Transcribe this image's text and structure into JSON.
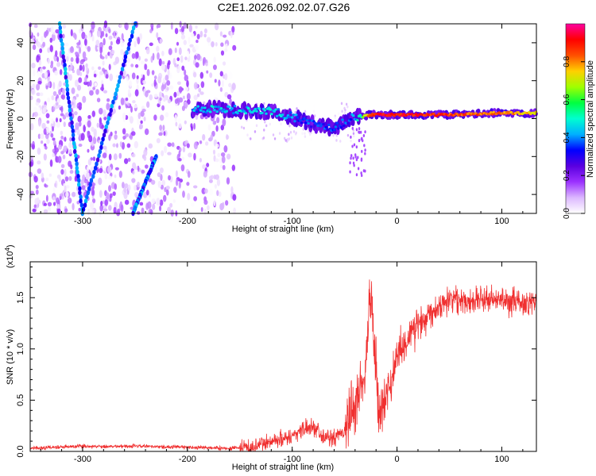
{
  "title": "C2E1.2026.092.02.07.G26",
  "colors": {
    "snr_line": "#f03030",
    "cbar_stops": [
      "#ffffff",
      "#dcb8ff",
      "#9b30ff",
      "#5a00e0",
      "#0000ff",
      "#00b0ff",
      "#00ffd0",
      "#00ff40",
      "#a0ff00",
      "#ffd000",
      "#ff5000",
      "#ff0000",
      "#ff00a0"
    ]
  },
  "chart_data": [
    {
      "id": "spectrogram",
      "type": "heatmap",
      "xlabel": "Height of straight line (km)",
      "ylabel": "Frequency (Hz)",
      "xlim": [
        -350,
        133
      ],
      "ylim": [
        -50,
        50
      ],
      "xticks": [
        -300,
        -200,
        -100,
        0,
        100
      ],
      "xtick_labels": [
        "-300",
        "-200",
        "-100",
        "0",
        "100"
      ],
      "yticks": [
        -40,
        -20,
        0,
        20,
        40
      ],
      "ytick_labels": [
        "-40",
        "-20",
        "0",
        "20",
        "40"
      ],
      "colorbar": {
        "label": "Normalized spectral amplitude",
        "range": [
          0,
          1
        ],
        "ticks": [
          0.0,
          0.2,
          0.4,
          0.6,
          0.8
        ],
        "tick_labels": [
          "0.0",
          "0.2",
          "0.4",
          "0.6",
          "0.8"
        ]
      },
      "noise_region_km": [
        -350,
        -155
      ],
      "main_signal_track": {
        "x": [
          -195,
          -180,
          -160,
          -140,
          -120,
          -100,
          -80,
          -60,
          -45,
          -35,
          -25,
          0,
          50,
          100,
          133
        ],
        "freq_hz": [
          5,
          5,
          5,
          4,
          4,
          1,
          -3,
          -5,
          0,
          1,
          2,
          2,
          2,
          3,
          3
        ],
        "amplitude": [
          0.4,
          0.45,
          0.45,
          0.45,
          0.45,
          0.4,
          0.35,
          0.35,
          0.35,
          0.5,
          0.9,
          0.9,
          0.85,
          0.8,
          0.75
        ]
      },
      "diagonal_tracks": [
        {
          "x_start": -322,
          "f_start": 50,
          "x_end": -300,
          "f_end": -50
        },
        {
          "x_start": -250,
          "f_start": 50,
          "x_end": -300,
          "f_end": -50
        },
        {
          "x_start": -230,
          "f_start": -20,
          "x_end": -252,
          "f_end": -50
        }
      ]
    },
    {
      "id": "snr",
      "type": "line",
      "xlabel": "Height of straight line (km)",
      "ylabel": "SNR (10 * v/v)",
      "scale_note": "(x10",
      "scale_exp": "4",
      "scale_close": ")",
      "xlim": [
        -350,
        133
      ],
      "ylim": [
        0,
        18500
      ],
      "xticks": [
        -300,
        -200,
        -100,
        0,
        100
      ],
      "xtick_labels": [
        "-300",
        "-200",
        "-100",
        "0",
        "100"
      ],
      "yticks": [
        0,
        5000,
        10000,
        15000
      ],
      "ytick_labels": [
        "0.0",
        "0.5",
        "1.0",
        "1.5"
      ],
      "series": [
        {
          "name": "SNR",
          "x": [
            -350,
            -300,
            -250,
            -200,
            -160,
            -140,
            -120,
            -100,
            -90,
            -80,
            -70,
            -60,
            -50,
            -40,
            -30,
            -25,
            -22,
            -18,
            -10,
            0,
            10,
            20,
            30,
            40,
            50,
            60,
            80,
            100,
            120,
            133
          ],
          "y": [
            300,
            500,
            500,
            400,
            300,
            400,
            1000,
            1500,
            2200,
            2500,
            1500,
            1200,
            2000,
            4500,
            8000,
            16500,
            11000,
            4000,
            5000,
            9500,
            11000,
            12500,
            13500,
            14200,
            15000,
            14800,
            14800,
            14700,
            14500,
            14500
          ]
        }
      ]
    }
  ]
}
